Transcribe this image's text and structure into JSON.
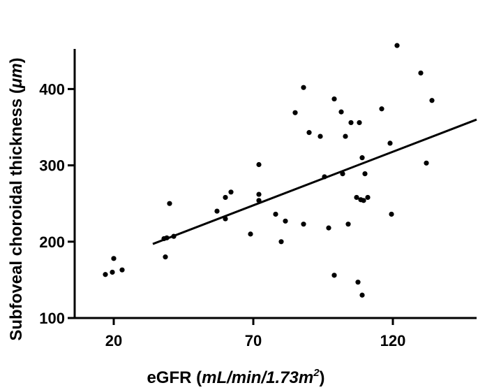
{
  "chart_data": {
    "type": "scatter",
    "title": "",
    "xlabel": {
      "main": "eGFR (",
      "italic": "mL/min/1.73m",
      "sup": "2",
      "end": ")"
    },
    "ylabel": {
      "main": "Subfoveal choroidal thickness (",
      "italic": "μm",
      "end": ")"
    },
    "xlim": [
      6,
      150
    ],
    "ylim": [
      100,
      480
    ],
    "x_ticks": [
      20,
      70,
      120
    ],
    "y_ticks": [
      100,
      200,
      300,
      400
    ],
    "grid": false,
    "points": [
      {
        "x": 17,
        "y": 157
      },
      {
        "x": 19.5,
        "y": 160
      },
      {
        "x": 20,
        "y": 178
      },
      {
        "x": 23,
        "y": 163
      },
      {
        "x": 38,
        "y": 204
      },
      {
        "x": 38.5,
        "y": 180
      },
      {
        "x": 39,
        "y": 205
      },
      {
        "x": 40,
        "y": 250
      },
      {
        "x": 41.5,
        "y": 207
      },
      {
        "x": 57,
        "y": 240
      },
      {
        "x": 60,
        "y": 258
      },
      {
        "x": 60,
        "y": 230
      },
      {
        "x": 62,
        "y": 265
      },
      {
        "x": 69,
        "y": 210
      },
      {
        "x": 72,
        "y": 301
      },
      {
        "x": 72,
        "y": 262
      },
      {
        "x": 72,
        "y": 254
      },
      {
        "x": 78,
        "y": 236
      },
      {
        "x": 80,
        "y": 200
      },
      {
        "x": 81.5,
        "y": 227
      },
      {
        "x": 85,
        "y": 369
      },
      {
        "x": 88,
        "y": 402
      },
      {
        "x": 88,
        "y": 223
      },
      {
        "x": 90,
        "y": 343
      },
      {
        "x": 94,
        "y": 338
      },
      {
        "x": 95.5,
        "y": 285
      },
      {
        "x": 97,
        "y": 218
      },
      {
        "x": 99,
        "y": 387
      },
      {
        "x": 99,
        "y": 156
      },
      {
        "x": 101.5,
        "y": 370
      },
      {
        "x": 102,
        "y": 289
      },
      {
        "x": 103,
        "y": 338
      },
      {
        "x": 104,
        "y": 223
      },
      {
        "x": 105,
        "y": 356
      },
      {
        "x": 107,
        "y": 258
      },
      {
        "x": 107.5,
        "y": 147
      },
      {
        "x": 108,
        "y": 356
      },
      {
        "x": 108.5,
        "y": 255
      },
      {
        "x": 109,
        "y": 310
      },
      {
        "x": 109,
        "y": 130
      },
      {
        "x": 109.5,
        "y": 254
      },
      {
        "x": 110,
        "y": 289
      },
      {
        "x": 111,
        "y": 258
      },
      {
        "x": 116,
        "y": 374
      },
      {
        "x": 119,
        "y": 329
      },
      {
        "x": 119.5,
        "y": 236
      },
      {
        "x": 121.5,
        "y": 457
      },
      {
        "x": 130,
        "y": 421
      },
      {
        "x": 132,
        "y": 303
      },
      {
        "x": 134,
        "y": 385
      }
    ],
    "trendline": {
      "x": [
        34,
        150
      ],
      "y": [
        197,
        360
      ]
    }
  }
}
